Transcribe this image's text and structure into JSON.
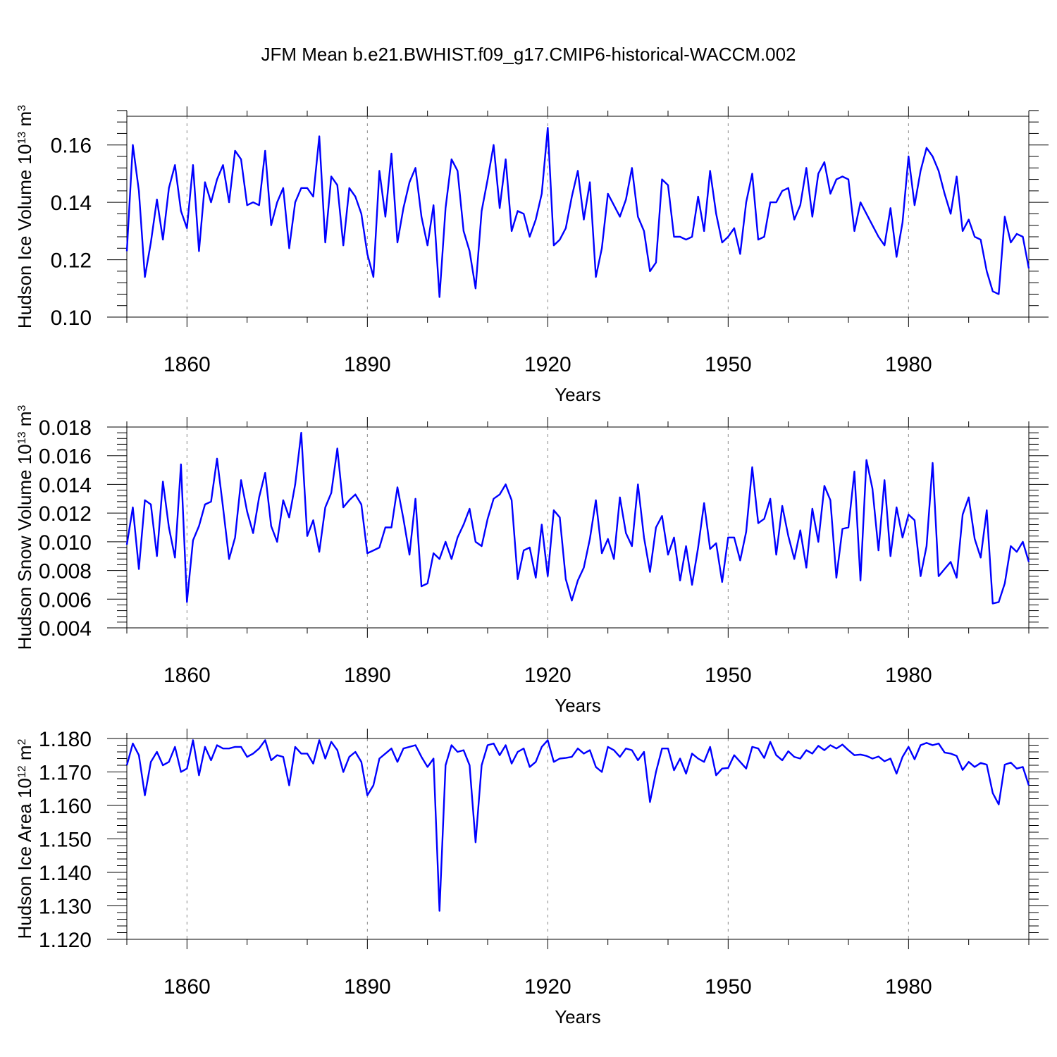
{
  "title": "JFM Mean b.e21.BWHIST.f09_g17.CMIP6-historical-WACCM.002",
  "colors": {
    "line": "#0000ff",
    "axis": "#000000",
    "grid": "#888888"
  },
  "chart_data": [
    {
      "type": "line",
      "title": "",
      "xlabel": "Years",
      "ylabel": {
        "main": "Hudson Ice Volume 10",
        "exp": "13",
        "unit": " m",
        "unit_exp": "3"
      },
      "xlim": [
        1850,
        2000
      ],
      "ylim": [
        0.1,
        0.17
      ],
      "xticks": [
        1860,
        1890,
        1920,
        1950,
        1980
      ],
      "xtick_labels": [
        "1860",
        "1890",
        "1920",
        "1950",
        "1980"
      ],
      "yticks": [
        0.1,
        0.12,
        0.14,
        0.16
      ],
      "ytick_labels": [
        "0.10",
        "0.12",
        "0.14",
        "0.16"
      ],
      "series": [
        {
          "name": "Hudson Ice Volume",
          "values": [
            0.123,
            0.16,
            0.144,
            0.114,
            0.126,
            0.141,
            0.127,
            0.145,
            0.153,
            0.137,
            0.131,
            0.153,
            0.123,
            0.147,
            0.14,
            0.148,
            0.153,
            0.14,
            0.158,
            0.155,
            0.139,
            0.14,
            0.139,
            0.158,
            0.132,
            0.14,
            0.145,
            0.124,
            0.14,
            0.145,
            0.145,
            0.142,
            0.163,
            0.126,
            0.149,
            0.146,
            0.125,
            0.145,
            0.142,
            0.136,
            0.122,
            0.114,
            0.151,
            0.135,
            0.157,
            0.126,
            0.138,
            0.147,
            0.152,
            0.135,
            0.125,
            0.139,
            0.107,
            0.138,
            0.155,
            0.151,
            0.13,
            0.123,
            0.11,
            0.137,
            0.148,
            0.16,
            0.138,
            0.155,
            0.13,
            0.137,
            0.136,
            0.128,
            0.134,
            0.143,
            0.166,
            0.125,
            0.127,
            0.131,
            0.142,
            0.151,
            0.134,
            0.147,
            0.114,
            0.124,
            0.143,
            0.139,
            0.135,
            0.141,
            0.152,
            0.135,
            0.13,
            0.116,
            0.119,
            0.148,
            0.146,
            0.128,
            0.128,
            0.127,
            0.128,
            0.142,
            0.13,
            0.151,
            0.136,
            0.126,
            0.128,
            0.131,
            0.122,
            0.14,
            0.15,
            0.127,
            0.128,
            0.14,
            0.14,
            0.144,
            0.145,
            0.134,
            0.139,
            0.152,
            0.135,
            0.15,
            0.154,
            0.143,
            0.148,
            0.149,
            0.148,
            0.13,
            0.14,
            0.136,
            0.132,
            0.128,
            0.125,
            0.138,
            0.121,
            0.133,
            0.156,
            0.139,
            0.151,
            0.159,
            0.156,
            0.151,
            0.143,
            0.136,
            0.149,
            0.13,
            0.134,
            0.128,
            0.127,
            0.116,
            0.109,
            0.108,
            0.135,
            0.126,
            0.129,
            0.128,
            0.117
          ]
        }
      ]
    },
    {
      "type": "line",
      "title": "",
      "xlabel": "Years",
      "ylabel": {
        "main": "Hudson Snow Volume 10",
        "exp": "13",
        "unit": " m",
        "unit_exp": "3"
      },
      "xlim": [
        1850,
        2000
      ],
      "ylim": [
        0.004,
        0.018
      ],
      "xticks": [
        1860,
        1890,
        1920,
        1950,
        1980
      ],
      "xtick_labels": [
        "1860",
        "1890",
        "1920",
        "1950",
        "1980"
      ],
      "yticks": [
        0.004,
        0.006,
        0.008,
        0.01,
        0.012,
        0.014,
        0.016,
        0.018
      ],
      "ytick_labels": [
        "0.004",
        "0.006",
        "0.008",
        "0.010",
        "0.012",
        "0.014",
        "0.016",
        "0.018"
      ],
      "series": [
        {
          "name": "Hudson Snow Volume",
          "values": [
            0.0098,
            0.0124,
            0.0081,
            0.0129,
            0.0126,
            0.009,
            0.0142,
            0.011,
            0.0089,
            0.0154,
            0.0058,
            0.0101,
            0.0111,
            0.0126,
            0.0128,
            0.0158,
            0.0124,
            0.0088,
            0.0103,
            0.0143,
            0.0121,
            0.0106,
            0.0131,
            0.0148,
            0.0111,
            0.01,
            0.0129,
            0.0117,
            0.014,
            0.0176,
            0.0104,
            0.0115,
            0.0093,
            0.0124,
            0.0134,
            0.0165,
            0.0124,
            0.0129,
            0.0133,
            0.0126,
            0.0092,
            0.0094,
            0.0096,
            0.011,
            0.011,
            0.0138,
            0.0116,
            0.0091,
            0.013,
            0.0069,
            0.0071,
            0.0092,
            0.0088,
            0.01,
            0.0088,
            0.0103,
            0.0112,
            0.0123,
            0.01,
            0.0097,
            0.0116,
            0.013,
            0.0133,
            0.014,
            0.0129,
            0.0074,
            0.0094,
            0.0096,
            0.0075,
            0.0112,
            0.0076,
            0.0122,
            0.0117,
            0.0074,
            0.0059,
            0.0073,
            0.0082,
            0.0102,
            0.0129,
            0.0092,
            0.0102,
            0.0088,
            0.0131,
            0.0106,
            0.0097,
            0.014,
            0.0103,
            0.0079,
            0.011,
            0.0118,
            0.0091,
            0.0103,
            0.0073,
            0.0097,
            0.007,
            0.0096,
            0.0127,
            0.0095,
            0.0099,
            0.0072,
            0.0103,
            0.0103,
            0.0087,
            0.0107,
            0.0152,
            0.0113,
            0.0116,
            0.013,
            0.0091,
            0.0125,
            0.0104,
            0.0088,
            0.0108,
            0.0082,
            0.0123,
            0.01,
            0.0139,
            0.0129,
            0.0075,
            0.0109,
            0.011,
            0.0149,
            0.0073,
            0.0157,
            0.0137,
            0.0094,
            0.0143,
            0.009,
            0.0124,
            0.0103,
            0.0119,
            0.0115,
            0.0076,
            0.0097,
            0.0155,
            0.0076,
            0.0081,
            0.0086,
            0.0075,
            0.0119,
            0.0131,
            0.0102,
            0.0089,
            0.0122,
            0.0057,
            0.0058,
            0.0071,
            0.0097,
            0.0093,
            0.01,
            0.0086
          ]
        }
      ]
    },
    {
      "type": "line",
      "title": "",
      "xlabel": "Years",
      "ylabel": {
        "main": "Hudson Ice Area 10",
        "exp": "12",
        "unit": " m",
        "unit_exp": "2"
      },
      "xlim": [
        1850,
        2000
      ],
      "ylim": [
        1.12,
        1.18
      ],
      "xticks": [
        1860,
        1890,
        1920,
        1950,
        1980
      ],
      "xtick_labels": [
        "1860",
        "1890",
        "1920",
        "1950",
        "1980"
      ],
      "yticks": [
        1.12,
        1.13,
        1.14,
        1.15,
        1.16,
        1.17,
        1.18
      ],
      "ytick_labels": [
        "1.120",
        "1.130",
        "1.140",
        "1.150",
        "1.160",
        "1.170",
        "1.180"
      ],
      "series": [
        {
          "name": "Hudson Ice Area",
          "values": [
            1.172,
            1.1785,
            1.175,
            1.163,
            1.173,
            1.176,
            1.172,
            1.173,
            1.1775,
            1.17,
            1.171,
            1.1795,
            1.169,
            1.1775,
            1.1735,
            1.178,
            1.177,
            1.177,
            1.1775,
            1.1775,
            1.1745,
            1.1755,
            1.177,
            1.1795,
            1.1735,
            1.175,
            1.1745,
            1.166,
            1.1775,
            1.1755,
            1.1755,
            1.1725,
            1.1795,
            1.174,
            1.179,
            1.1765,
            1.17,
            1.1745,
            1.176,
            1.173,
            1.163,
            1.166,
            1.174,
            1.1755,
            1.177,
            1.173,
            1.177,
            1.1775,
            1.178,
            1.1745,
            1.1715,
            1.174,
            1.1285,
            1.172,
            1.178,
            1.176,
            1.1765,
            1.172,
            1.149,
            1.172,
            1.178,
            1.1785,
            1.175,
            1.178,
            1.1725,
            1.176,
            1.177,
            1.1715,
            1.173,
            1.1775,
            1.1795,
            1.173,
            1.174,
            1.1742,
            1.1745,
            1.177,
            1.1755,
            1.1765,
            1.1715,
            1.17,
            1.1775,
            1.1765,
            1.1745,
            1.177,
            1.1765,
            1.1735,
            1.176,
            1.161,
            1.17,
            1.177,
            1.177,
            1.1705,
            1.174,
            1.1695,
            1.1755,
            1.174,
            1.173,
            1.1775,
            1.169,
            1.171,
            1.1712,
            1.175,
            1.173,
            1.171,
            1.1775,
            1.177,
            1.1742,
            1.179,
            1.175,
            1.1735,
            1.1762,
            1.1745,
            1.174,
            1.1765,
            1.1755,
            1.1778,
            1.1765,
            1.178,
            1.177,
            1.1782,
            1.1765,
            1.175,
            1.1752,
            1.1748,
            1.174,
            1.1746,
            1.1732,
            1.174,
            1.1695,
            1.1745,
            1.1775,
            1.1738,
            1.178,
            1.1787,
            1.178,
            1.1785,
            1.1758,
            1.1755,
            1.1748,
            1.1706,
            1.173,
            1.1715,
            1.1727,
            1.1722,
            1.1637,
            1.1603,
            1.1722,
            1.1728,
            1.171,
            1.1715,
            1.166
          ]
        }
      ]
    }
  ]
}
